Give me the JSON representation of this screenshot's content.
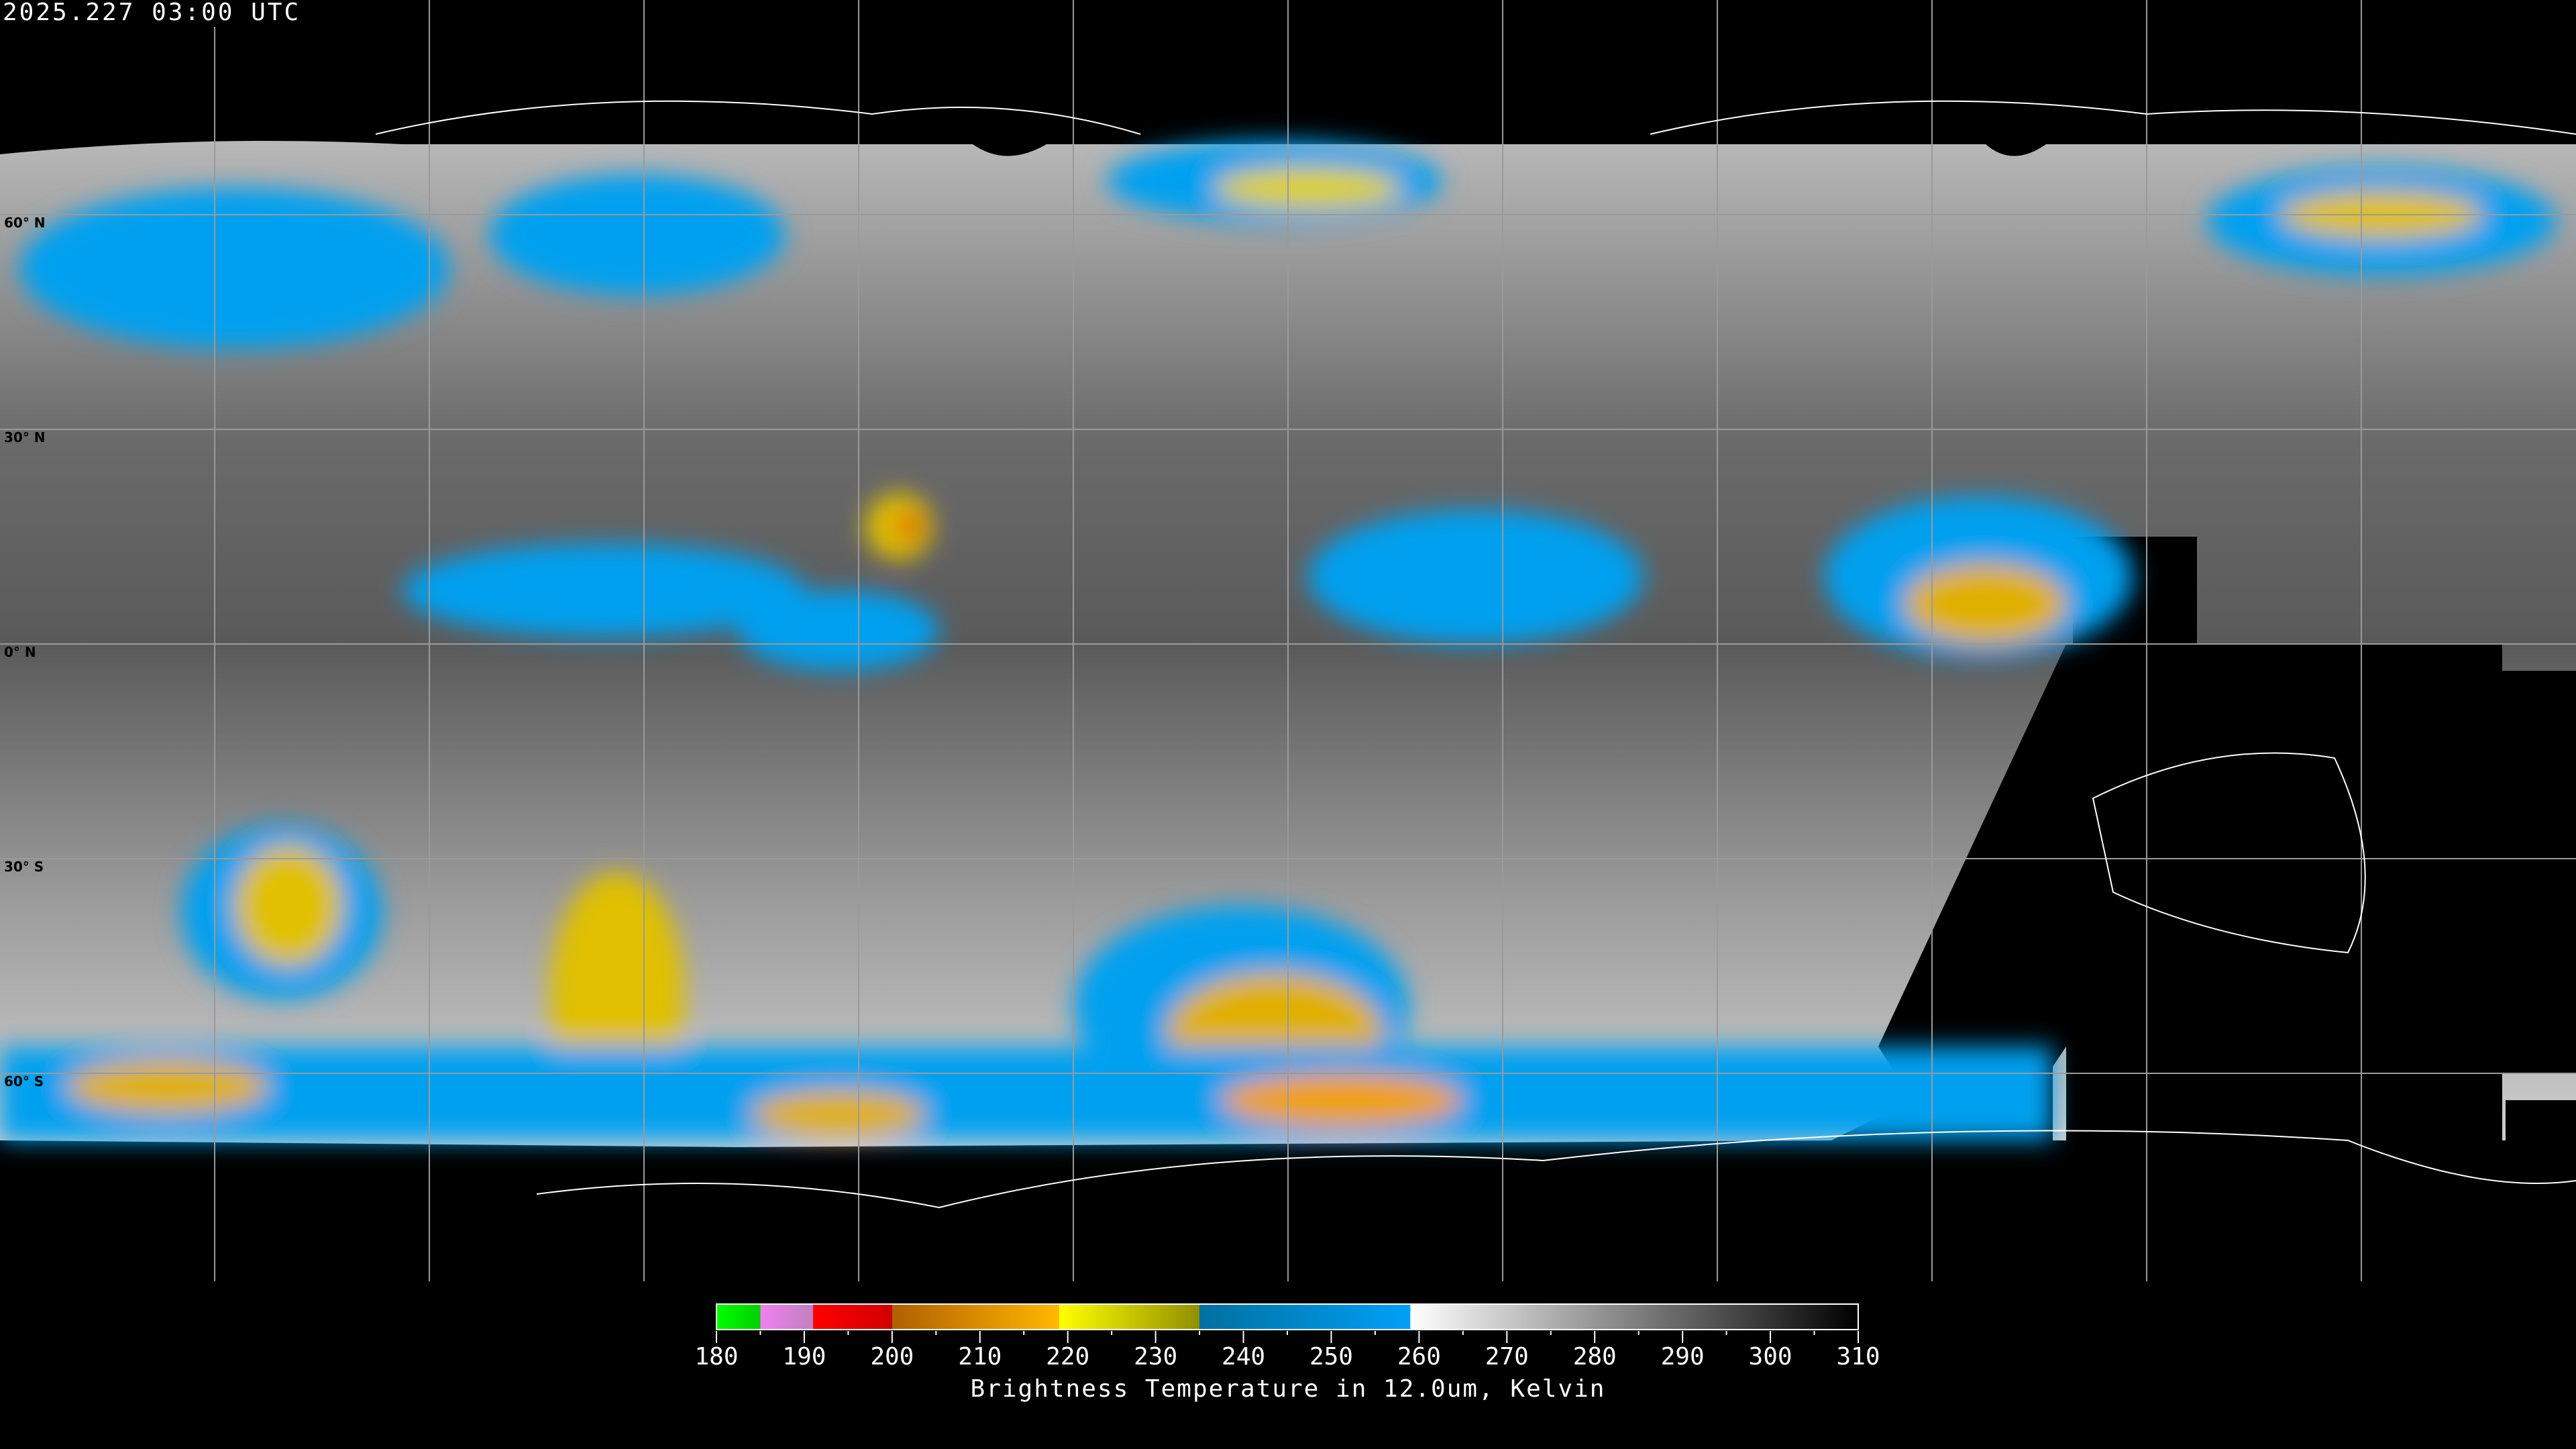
{
  "header": {
    "timestamp": "2025.227 03:00 UTC"
  },
  "map": {
    "projection": "equirectangular",
    "lat_labels": [
      "60° N",
      "30° N",
      "0° N",
      "30° S",
      "60° S"
    ],
    "grid_spacing_deg": 30
  },
  "colorbar": {
    "title": "Brightness Temperature in 12.0um, Kelvin",
    "range": [
      180,
      310
    ],
    "tick_labels": [
      "180",
      "190",
      "200",
      "210",
      "220",
      "230",
      "240",
      "250",
      "260",
      "270",
      "280",
      "290",
      "300",
      "310"
    ],
    "segments": [
      {
        "from": 180,
        "to": 185,
        "colors": [
          "#00ff00",
          "#00d000"
        ]
      },
      {
        "from": 185,
        "to": 191,
        "colors": [
          "#f080f0",
          "#c080c0"
        ]
      },
      {
        "from": 191,
        "to": 200,
        "colors": [
          "#ff0000",
          "#d00000"
        ]
      },
      {
        "from": 200,
        "to": 219,
        "colors": [
          "#b06000",
          "#ffb800"
        ]
      },
      {
        "from": 219,
        "to": 235,
        "colors": [
          "#ffff00",
          "#909000"
        ]
      },
      {
        "from": 235,
        "to": 259,
        "colors": [
          "#0070a0",
          "#00a0f8"
        ]
      },
      {
        "from": 259,
        "to": 310,
        "colors": [
          "#ffffff",
          "#000000"
        ]
      }
    ]
  }
}
